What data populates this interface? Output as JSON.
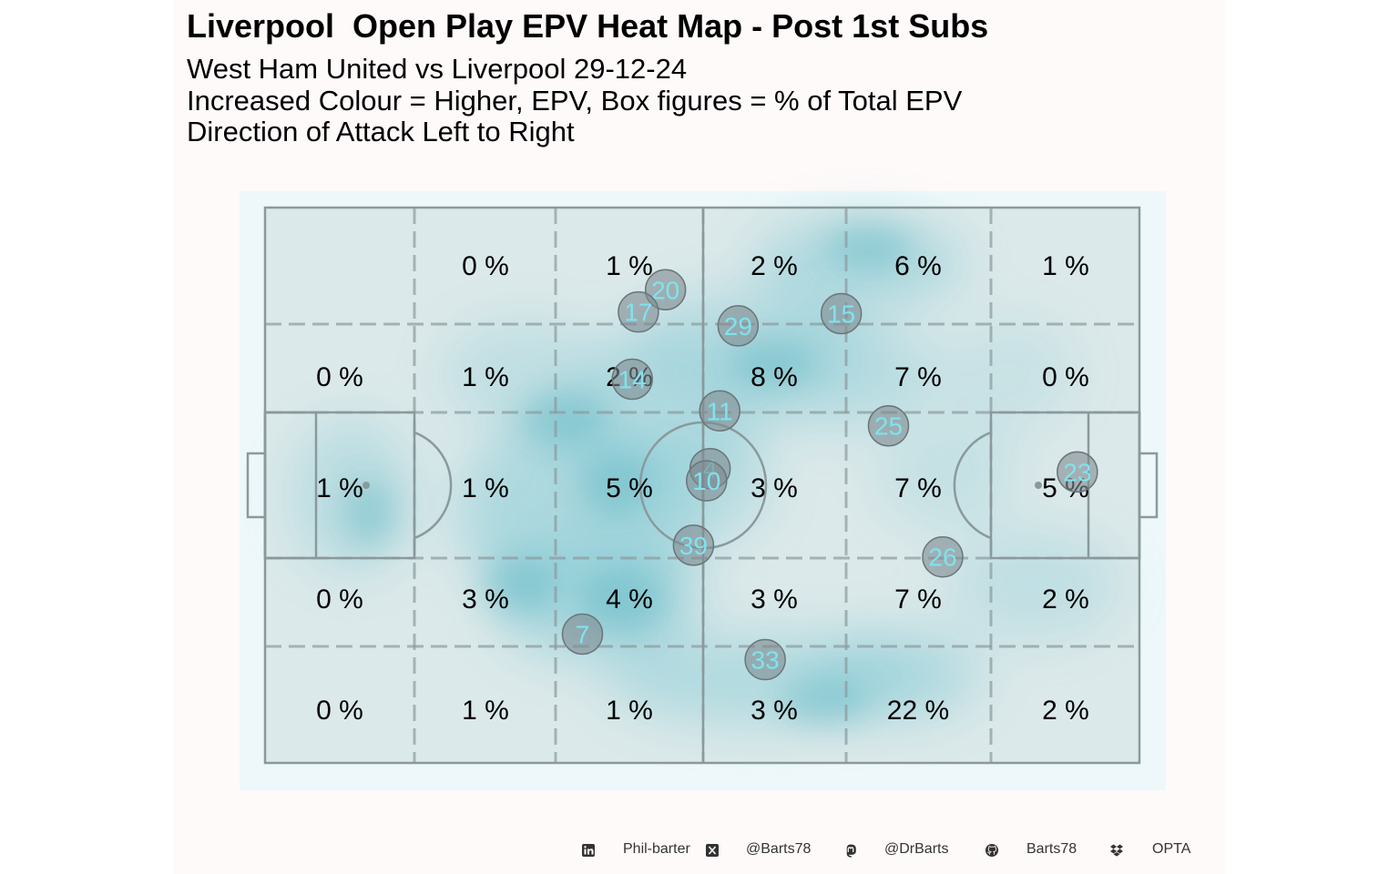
{
  "header": {
    "title": "Liverpool  Open Play EPV Heat Map - Post 1st Subs",
    "subtitle_1": "West Ham United vs Liverpool 29-12-24",
    "subtitle_2": "Increased Colour = Higher, EPV, Box figures = % of Total EPV",
    "subtitle_3": "Direction of Attack Left to Right"
  },
  "colors": {
    "panel_bg": "#fffafa",
    "pitch_bg": "#eef8fa",
    "zone_fill": "#dce9ea",
    "heat": "#4fb8c8",
    "lines": "#8a9a9c",
    "player_circle": "#7f8a8f",
    "player_number": "#7fe3ef"
  },
  "chart_data": {
    "type": "heatmap",
    "title": "Liverpool  Open Play EPV Heat Map - Post 1st Subs",
    "zone_label_suffix": " %",
    "zone_rows": [
      [
        null,
        0,
        1,
        2,
        6,
        1
      ],
      [
        0,
        1,
        2,
        8,
        7,
        0
      ],
      [
        1,
        1,
        5,
        3,
        7,
        5
      ],
      [
        0,
        3,
        4,
        3,
        7,
        2
      ],
      [
        0,
        1,
        1,
        3,
        22,
        2
      ]
    ],
    "players": [
      {
        "number": "20",
        "x": 45.8,
        "y": 14.8
      },
      {
        "number": "17",
        "x": 42.7,
        "y": 18.8
      },
      {
        "number": "29",
        "x": 54.1,
        "y": 21.3
      },
      {
        "number": "15",
        "x": 65.9,
        "y": 19.1
      },
      {
        "number": "14",
        "x": 42.0,
        "y": 30.9
      },
      {
        "number": "11",
        "x": 52.0,
        "y": 36.6
      },
      {
        "number": "25",
        "x": 71.3,
        "y": 39.3
      },
      {
        "number": "4",
        "x": 50.9,
        "y": 47.0
      },
      {
        "number": "10",
        "x": 50.5,
        "y": 49.2
      },
      {
        "number": "23",
        "x": 92.9,
        "y": 47.6
      },
      {
        "number": "39",
        "x": 49.0,
        "y": 60.8
      },
      {
        "number": "26",
        "x": 77.5,
        "y": 62.9
      },
      {
        "number": "7",
        "x": 36.3,
        "y": 76.8
      },
      {
        "number": "33",
        "x": 57.2,
        "y": 81.4
      }
    ]
  },
  "footer": {
    "linkedin_icon": "linkedin-icon",
    "linkedin": "Phil-barter",
    "x_icon": "x-twitter-icon",
    "x": "@Barts78",
    "mastodon_icon": "mastodon-icon",
    "mastodon": "@DrBarts",
    "github_icon": "github-icon",
    "github": "Barts78",
    "dropbox_icon": "dropbox-icon",
    "source": "OPTA"
  }
}
